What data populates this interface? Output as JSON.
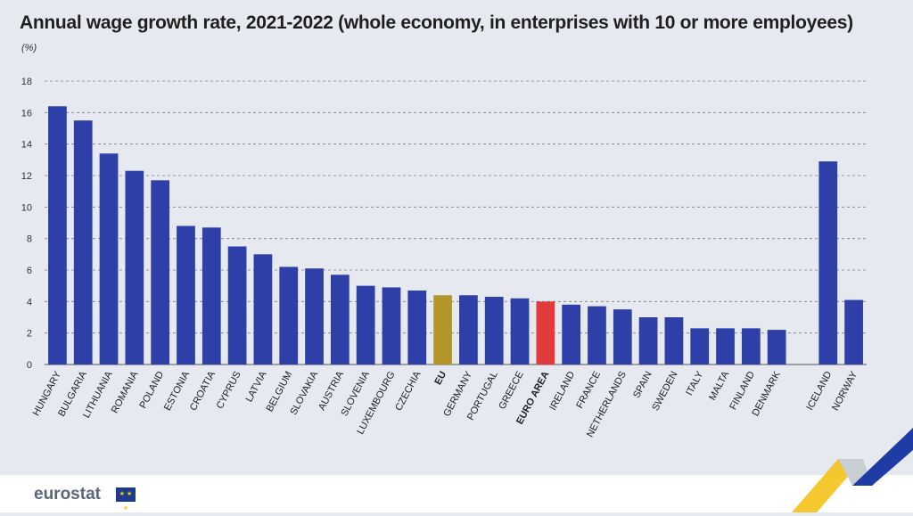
{
  "title": "Annual wage growth rate, 2021-2022 (whole economy, in enterprises with 10 or more employees)",
  "unit": "(%)",
  "logo": {
    "text": "eurostat",
    "flag_icon": "eu-flag-icon"
  },
  "colors": {
    "bar": "#2e3fa8",
    "eu": "#b3962a",
    "euro_area": "#e23b3b",
    "grid": "#7d7d7d",
    "background": "#e6e9ef",
    "deco_yellow": "#f4c21a",
    "deco_blue": "#1f3ba6"
  },
  "chart_data": {
    "type": "bar",
    "ylim": [
      0,
      18
    ],
    "yticks": [
      0,
      2,
      4,
      6,
      8,
      10,
      12,
      14,
      16,
      18
    ],
    "grid": true,
    "categories": [
      "HUNGARY",
      "BULGARIA",
      "LITHUANIA",
      "ROMANIA",
      "POLAND",
      "ESTONIA",
      "CROATIA",
      "CYPRUS",
      "LATVIA",
      "BELGIUM",
      "SLOVAKIA",
      "AUSTRIA",
      "SLOVENIA",
      "LUXEMBOURG",
      "CZECHIA",
      "EU",
      "GERMANY",
      "PORTUGAL",
      "GREECE",
      "EURO AREA",
      "IRELAND",
      "FRANCE",
      "NETHERLANDS",
      "SPAIN",
      "SWEDEN",
      "ITALY",
      "MALTA",
      "FINLAND",
      "DENMARK",
      "",
      "ICELAND",
      "NORWAY"
    ],
    "values": [
      16.4,
      15.5,
      13.4,
      12.3,
      11.7,
      8.8,
      8.7,
      7.5,
      7.0,
      6.2,
      6.1,
      5.7,
      5.0,
      4.9,
      4.7,
      4.4,
      4.4,
      4.3,
      4.2,
      4.0,
      3.8,
      3.7,
      3.5,
      3.0,
      3.0,
      2.3,
      2.3,
      2.3,
      2.2,
      null,
      12.9,
      4.1
    ],
    "highlight": {
      "EU": "eu",
      "EURO AREA": "euro_area"
    },
    "bold_labels": [
      "EU",
      "EURO AREA"
    ]
  }
}
